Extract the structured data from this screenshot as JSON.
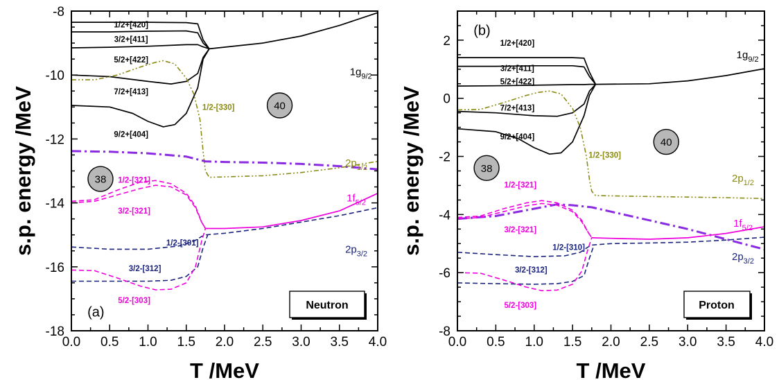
{
  "chart_data": [
    {
      "type": "line",
      "panel_tag": "(a)",
      "legend_box": "Neutron",
      "xlabel": "T /MeV",
      "ylabel": "s.p. energy /MeV",
      "xlim": [
        0.0,
        4.0
      ],
      "ylim": [
        -18,
        -8
      ],
      "xticks": [
        "0.0",
        "0.5",
        "1.0",
        "1.5",
        "2.0",
        "2.5",
        "3.0",
        "3.5",
        "4.0"
      ],
      "yticks": [
        "-18",
        "-16",
        "-14",
        "-12",
        "-10",
        "-8"
      ],
      "magic_numbers": [
        {
          "label": "38",
          "x": 0.38,
          "y": -13.25
        },
        {
          "label": "40",
          "x": 2.72,
          "y": -10.95
        }
      ],
      "series": [
        {
          "name": "1/2+[420]",
          "group": "1g9/2",
          "color": "#000000",
          "style": "solid",
          "x": [
            0.0,
            0.5,
            1.0,
            1.5,
            1.65,
            1.72,
            1.8,
            2.5,
            3.0,
            3.5,
            4.0
          ],
          "y": [
            -8.35,
            -8.35,
            -8.35,
            -8.36,
            -8.4,
            -8.9,
            -9.18,
            -9.0,
            -8.78,
            -8.45,
            -8.05
          ]
        },
        {
          "name": "3/2+[411]",
          "group": "1g9/2",
          "color": "#000000",
          "style": "solid",
          "x": [
            0.0,
            0.5,
            1.0,
            1.5,
            1.65,
            1.72,
            1.8
          ],
          "y": [
            -8.65,
            -8.65,
            -8.63,
            -8.62,
            -8.68,
            -9.0,
            -9.18
          ]
        },
        {
          "name": "5/2+[422]",
          "group": "1g9/2",
          "color": "#000000",
          "style": "solid",
          "x": [
            0.0,
            0.5,
            1.0,
            1.5,
            1.65,
            1.72,
            1.8
          ],
          "y": [
            -9.15,
            -9.13,
            -9.1,
            -9.05,
            -9.05,
            -9.12,
            -9.18
          ]
        },
        {
          "name": "7/2+[413]",
          "group": "1g9/2",
          "color": "#000000",
          "style": "solid",
          "x": [
            0.0,
            0.5,
            1.0,
            1.3,
            1.5,
            1.65,
            1.72,
            1.8
          ],
          "y": [
            -10.0,
            -10.05,
            -10.2,
            -10.28,
            -10.2,
            -9.95,
            -9.45,
            -9.18
          ]
        },
        {
          "name": "9/2+[404]",
          "group": "1g9/2",
          "color": "#000000",
          "style": "solid",
          "x": [
            0.0,
            0.5,
            0.8,
            1.0,
            1.2,
            1.35,
            1.5,
            1.65,
            1.72,
            1.8
          ],
          "y": [
            -10.95,
            -11.0,
            -11.2,
            -11.45,
            -11.62,
            -11.55,
            -11.2,
            -10.4,
            -9.5,
            -9.18
          ]
        },
        {
          "name": "1/2-[330]",
          "group": "",
          "color": "#8a8a12",
          "style": "dashdotdot",
          "x": [
            0.0,
            0.3,
            0.6,
            0.9,
            1.1,
            1.2,
            1.35,
            1.5,
            1.6,
            1.68,
            1.72,
            1.75,
            1.8,
            2.5,
            3.0,
            3.5,
            4.0
          ],
          "y": [
            -10.15,
            -10.15,
            -10.0,
            -9.75,
            -9.6,
            -9.55,
            -9.65,
            -10.1,
            -10.6,
            -11.4,
            -12.4,
            -13.0,
            -13.2,
            -13.15,
            -13.05,
            -12.9,
            -12.7
          ]
        },
        {
          "name": "2p1/2",
          "group": "2p1/2",
          "color": "#8a2be2",
          "style": "dashdot",
          "x": [
            0.0,
            0.5,
            1.0,
            1.5,
            1.75,
            2.0,
            2.5,
            3.0,
            3.5,
            4.0
          ],
          "y": [
            -12.38,
            -12.4,
            -12.45,
            -12.55,
            -12.7,
            -12.72,
            -12.74,
            -12.78,
            -12.85,
            -12.95
          ]
        },
        {
          "name": "1/2-[321]",
          "group": "1f5/2",
          "color": "#ee00dd",
          "style": "dash",
          "x": [
            0.0,
            0.3,
            0.6,
            0.9,
            1.1,
            1.3,
            1.5,
            1.62,
            1.7,
            1.75
          ],
          "y": [
            -13.95,
            -13.9,
            -13.6,
            -13.35,
            -13.3,
            -13.4,
            -13.7,
            -14.1,
            -14.6,
            -14.8
          ]
        },
        {
          "name": "3/2-[321]",
          "group": "1f5/2",
          "color": "#ee00dd",
          "style": "dash",
          "x": [
            0.0,
            0.3,
            0.6,
            0.9,
            1.1,
            1.3,
            1.5,
            1.62,
            1.7,
            1.75
          ],
          "y": [
            -14.0,
            -13.95,
            -13.75,
            -13.55,
            -13.45,
            -13.5,
            -13.75,
            -14.15,
            -14.6,
            -14.8
          ]
        },
        {
          "name": "1f5/2",
          "group": "1f5/2",
          "color": "#ee00dd",
          "style": "solid",
          "x": [
            1.75,
            2.0,
            2.5,
            3.0,
            3.5,
            4.0
          ],
          "y": [
            -14.8,
            -14.8,
            -14.75,
            -14.55,
            -14.25,
            -13.7
          ]
        },
        {
          "name": "1/2-[301]",
          "group": "2p3/2",
          "color": "#1a237e",
          "style": "dash",
          "x": [
            0.0,
            0.5,
            1.0,
            1.4,
            1.6,
            1.7,
            1.75,
            2.0,
            2.5,
            3.0,
            3.5,
            4.0
          ],
          "y": [
            -15.38,
            -15.45,
            -15.45,
            -15.35,
            -15.2,
            -15.05,
            -15.0,
            -14.95,
            -14.8,
            -14.6,
            -14.4,
            -14.15
          ]
        },
        {
          "name": "3/2-[312]",
          "group": "2p3/2",
          "color": "#1a237e",
          "style": "dash",
          "x": [
            0.0,
            0.5,
            1.0,
            1.3,
            1.5,
            1.65,
            1.72,
            1.78
          ],
          "y": [
            -16.45,
            -16.45,
            -16.45,
            -16.42,
            -16.3,
            -16.0,
            -15.4,
            -15.0
          ]
        },
        {
          "name": "5/2-[303]",
          "group": "1f5/2",
          "color": "#ee00dd",
          "style": "dash",
          "x": [
            0.0,
            0.3,
            0.6,
            0.9,
            1.1,
            1.3,
            1.5,
            1.62,
            1.7,
            1.75
          ],
          "y": [
            -16.1,
            -16.12,
            -16.35,
            -16.6,
            -16.72,
            -16.7,
            -16.5,
            -16.0,
            -15.2,
            -14.8
          ]
        }
      ],
      "level_labels": [
        {
          "text": "1/2+[420]",
          "x": 0.78,
          "y": -8.42,
          "color": "#000000"
        },
        {
          "text": "3/2+[411]",
          "x": 0.78,
          "y": -8.88,
          "color": "#000000"
        },
        {
          "text": "5/2+[422]",
          "x": 0.78,
          "y": -9.52,
          "color": "#000000"
        },
        {
          "text": "7/2+[413]",
          "x": 0.78,
          "y": -10.52,
          "color": "#000000"
        },
        {
          "text": "9/2+[404]",
          "x": 0.78,
          "y": -11.85,
          "color": "#000000"
        },
        {
          "text": "1/2-[330]",
          "x": 1.92,
          "y": -11.0,
          "color": "#8a8a12"
        },
        {
          "text": "1/2-[321]",
          "x": 0.82,
          "y": -13.28,
          "color": "#ee00dd"
        },
        {
          "text": "3/2-[321]",
          "x": 0.82,
          "y": -14.25,
          "color": "#ee00dd"
        },
        {
          "text": "1/2-[301]",
          "x": 1.45,
          "y": -15.25,
          "color": "#1a237e"
        },
        {
          "text": "3/2-[312]",
          "x": 0.96,
          "y": -16.05,
          "color": "#1a237e"
        },
        {
          "text": "5/2-[303]",
          "x": 0.82,
          "y": -17.05,
          "color": "#ee00dd"
        }
      ],
      "orbital_labels": [
        {
          "main": "1g",
          "sub": "9/2",
          "x": 3.78,
          "y": -9.9,
          "color": "#000000"
        },
        {
          "main": "2p",
          "sub": "1/2",
          "x": 3.72,
          "y": -12.75,
          "color": "#8a8a12"
        },
        {
          "main": "1f",
          "sub": "5/2",
          "x": 3.72,
          "y": -13.85,
          "color": "#ee00dd"
        },
        {
          "main": "2p",
          "sub": "3/2",
          "x": 3.72,
          "y": -15.45,
          "color": "#1a237e"
        }
      ]
    },
    {
      "type": "line",
      "panel_tag": "(b)",
      "legend_box": "Proton",
      "xlabel": "T /MeV",
      "ylabel": "s.p. energy /MeV",
      "xlim": [
        0.0,
        4.0
      ],
      "ylim": [
        -8,
        3
      ],
      "xticks": [
        "0.0",
        "0.5",
        "1.0",
        "1.5",
        "2.0",
        "2.5",
        "3.0",
        "3.5",
        "4.0"
      ],
      "yticks": [
        "-8",
        "-6",
        "-4",
        "-2",
        "0",
        "2"
      ],
      "magic_numbers": [
        {
          "label": "38",
          "x": 0.38,
          "y": -2.4
        },
        {
          "label": "40",
          "x": 2.72,
          "y": -1.5
        }
      ],
      "series": [
        {
          "name": "1/2+[420]",
          "group": "1g9/2",
          "color": "#000000",
          "style": "solid",
          "x": [
            0.0,
            0.5,
            1.0,
            1.5,
            1.65,
            1.72,
            1.8,
            2.5,
            3.0,
            3.5,
            4.0
          ],
          "y": [
            1.4,
            1.4,
            1.4,
            1.4,
            1.38,
            0.9,
            0.48,
            0.5,
            0.6,
            0.78,
            1.02
          ]
        },
        {
          "name": "3/2+[411]",
          "group": "1g9/2",
          "color": "#000000",
          "style": "solid",
          "x": [
            0.0,
            0.5,
            1.0,
            1.5,
            1.65,
            1.72,
            1.8
          ],
          "y": [
            1.1,
            1.1,
            1.12,
            1.12,
            1.08,
            0.75,
            0.48
          ]
        },
        {
          "name": "5/2+[422]",
          "group": "1g9/2",
          "color": "#000000",
          "style": "solid",
          "x": [
            0.0,
            0.5,
            1.0,
            1.5,
            1.65,
            1.72,
            1.8
          ],
          "y": [
            0.42,
            0.43,
            0.45,
            0.47,
            0.47,
            0.48,
            0.48
          ]
        },
        {
          "name": "7/2+[413]",
          "group": "1g9/2",
          "color": "#000000",
          "style": "solid",
          "x": [
            0.0,
            0.5,
            1.0,
            1.3,
            1.5,
            1.65,
            1.72,
            1.8
          ],
          "y": [
            -0.45,
            -0.5,
            -0.6,
            -0.62,
            -0.5,
            -0.2,
            0.25,
            0.48
          ]
        },
        {
          "name": "9/2+[404]",
          "group": "1g9/2",
          "color": "#000000",
          "style": "solid",
          "x": [
            0.0,
            0.5,
            0.8,
            1.0,
            1.2,
            1.35,
            1.5,
            1.65,
            1.72,
            1.8
          ],
          "y": [
            -1.05,
            -1.15,
            -1.4,
            -1.7,
            -1.92,
            -1.88,
            -1.5,
            -0.6,
            0.1,
            0.48
          ]
        },
        {
          "name": "1/2-[330]",
          "group": "",
          "color": "#8a8a12",
          "style": "dashdotdot",
          "x": [
            0.0,
            0.3,
            0.6,
            0.9,
            1.05,
            1.2,
            1.35,
            1.5,
            1.6,
            1.68,
            1.72,
            1.75,
            1.8,
            2.5,
            3.0,
            3.5,
            4.0
          ],
          "y": [
            -0.4,
            -0.38,
            -0.15,
            0.1,
            0.2,
            0.25,
            0.15,
            -0.35,
            -1.0,
            -2.0,
            -2.8,
            -3.2,
            -3.35,
            -3.38,
            -3.4,
            -3.42,
            -3.45
          ]
        },
        {
          "name": "2p1/2",
          "group": "2p1/2",
          "color": "#8a2be2",
          "style": "dashdot",
          "x": [
            0.0,
            0.5,
            1.0,
            1.3,
            1.5,
            1.75,
            2.0,
            2.5,
            3.0,
            3.5,
            4.0
          ],
          "y": [
            -4.15,
            -4.05,
            -3.8,
            -3.65,
            -3.68,
            -3.75,
            -3.9,
            -4.2,
            -4.5,
            -4.85,
            -5.2
          ]
        },
        {
          "name": "1/2-[321]",
          "group": "1f5/2",
          "color": "#ee00dd",
          "style": "dash",
          "x": [
            0.0,
            0.3,
            0.6,
            0.9,
            1.1,
            1.3,
            1.5,
            1.62,
            1.7,
            1.75
          ],
          "y": [
            -4.1,
            -4.05,
            -3.8,
            -3.6,
            -3.52,
            -3.6,
            -3.85,
            -4.2,
            -4.6,
            -4.8
          ]
        },
        {
          "name": "3/2-[321]",
          "group": "1f5/2",
          "color": "#ee00dd",
          "style": "dash",
          "x": [
            0.0,
            0.3,
            0.6,
            0.9,
            1.1,
            1.3,
            1.5,
            1.62,
            1.7,
            1.75
          ],
          "y": [
            -4.15,
            -4.1,
            -3.9,
            -3.7,
            -3.62,
            -3.68,
            -3.9,
            -4.25,
            -4.6,
            -4.8
          ]
        },
        {
          "name": "1f5/2",
          "group": "1f5/2",
          "color": "#ee00dd",
          "style": "solid",
          "x": [
            1.75,
            2.0,
            2.5,
            3.0,
            3.5,
            4.0
          ],
          "y": [
            -4.8,
            -4.82,
            -4.85,
            -4.8,
            -4.65,
            -4.42
          ]
        },
        {
          "name": "1/2-[310]",
          "group": "2p3/2",
          "color": "#1a237e",
          "style": "dash",
          "x": [
            0.0,
            0.5,
            1.0,
            1.4,
            1.6,
            1.7,
            1.75,
            2.0,
            2.5,
            3.0,
            3.5,
            4.0
          ],
          "y": [
            -5.3,
            -5.38,
            -5.45,
            -5.42,
            -5.3,
            -5.12,
            -5.05,
            -5.0,
            -4.98,
            -4.95,
            -4.88,
            -4.78
          ]
        },
        {
          "name": "3/2-[312]",
          "group": "2p3/2",
          "color": "#1a237e",
          "style": "dash",
          "x": [
            0.0,
            0.5,
            1.0,
            1.3,
            1.5,
            1.65,
            1.72,
            1.78
          ],
          "y": [
            -6.35,
            -6.38,
            -6.4,
            -6.38,
            -6.3,
            -6.1,
            -5.5,
            -5.05
          ]
        },
        {
          "name": "5/2-[303]",
          "group": "1f5/2",
          "color": "#ee00dd",
          "style": "dash",
          "x": [
            0.0,
            0.3,
            0.6,
            0.9,
            1.1,
            1.3,
            1.5,
            1.62,
            1.7,
            1.75
          ],
          "y": [
            -6.0,
            -6.02,
            -6.25,
            -6.5,
            -6.62,
            -6.6,
            -6.4,
            -5.95,
            -5.2,
            -4.8
          ]
        }
      ],
      "level_labels": [
        {
          "text": "1/2+[420]",
          "x": 0.78,
          "y": 1.9,
          "color": "#000000"
        },
        {
          "text": "3/2+[411]",
          "x": 0.78,
          "y": 1.03,
          "color": "#000000"
        },
        {
          "text": "5/2+[422]",
          "x": 0.78,
          "y": 0.58,
          "color": "#000000"
        },
        {
          "text": "7/2+[413]",
          "x": 0.78,
          "y": -0.33,
          "color": "#000000"
        },
        {
          "text": "9/2+[404]",
          "x": 0.78,
          "y": -1.32,
          "color": "#000000"
        },
        {
          "text": "1/2-[330]",
          "x": 1.92,
          "y": -1.95,
          "color": "#8a8a12"
        },
        {
          "text": "1/2-[321]",
          "x": 0.82,
          "y": -2.98,
          "color": "#ee00dd"
        },
        {
          "text": "3/2-[321]",
          "x": 0.82,
          "y": -4.52,
          "color": "#ee00dd"
        },
        {
          "text": "1/2-[310]",
          "x": 1.45,
          "y": -5.12,
          "color": "#1a237e"
        },
        {
          "text": "3/2-[312]",
          "x": 0.96,
          "y": -5.9,
          "color": "#1a237e"
        },
        {
          "text": "5/2-[303]",
          "x": 0.82,
          "y": -7.12,
          "color": "#ee00dd"
        }
      ],
      "orbital_labels": [
        {
          "main": "1g",
          "sub": "9/2",
          "x": 3.78,
          "y": 1.5,
          "color": "#000000"
        },
        {
          "main": "2p",
          "sub": "1/2",
          "x": 3.72,
          "y": -2.75,
          "color": "#8a8a12"
        },
        {
          "main": "1f",
          "sub": "5/2",
          "x": 3.72,
          "y": -4.3,
          "color": "#ee00dd"
        },
        {
          "main": "2p",
          "sub": "3/2",
          "x": 3.72,
          "y": -5.45,
          "color": "#1a237e"
        }
      ]
    }
  ]
}
